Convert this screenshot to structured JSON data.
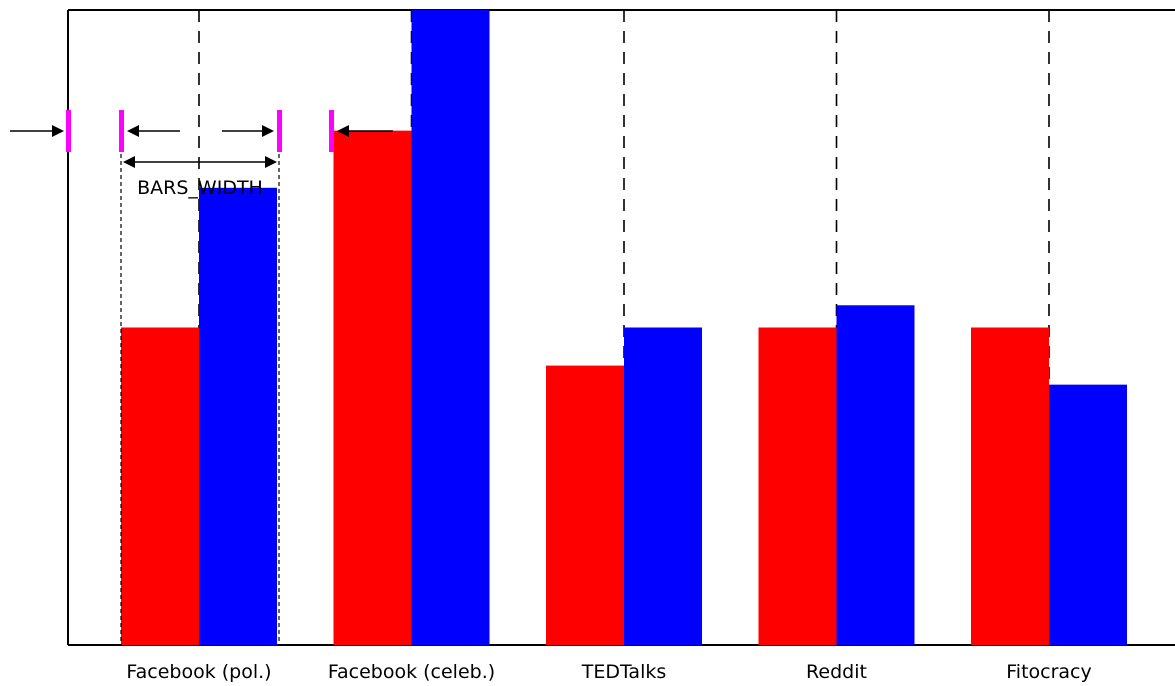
{
  "chart_data": {
    "type": "bar",
    "title": "",
    "xlabel": "",
    "ylabel": "",
    "categories": [
      "Facebook (pol.)",
      "Facebook (celeb.)",
      "TEDTalks",
      "Reddit",
      "Fitocracy"
    ],
    "series": [
      {
        "color": "#ff0000",
        "values": [
          0.5,
          0.81,
          0.44,
          0.5,
          0.5
        ]
      },
      {
        "color": "#0000ff",
        "values": [
          0.72,
          1.0,
          0.5,
          0.535,
          0.41
        ]
      }
    ],
    "ylim": [
      0,
      1
    ],
    "grid": false,
    "legend": "none",
    "annotations": {
      "bars_width_label": "BARS_WIDTH",
      "marker_color": "#ff00ff"
    }
  }
}
